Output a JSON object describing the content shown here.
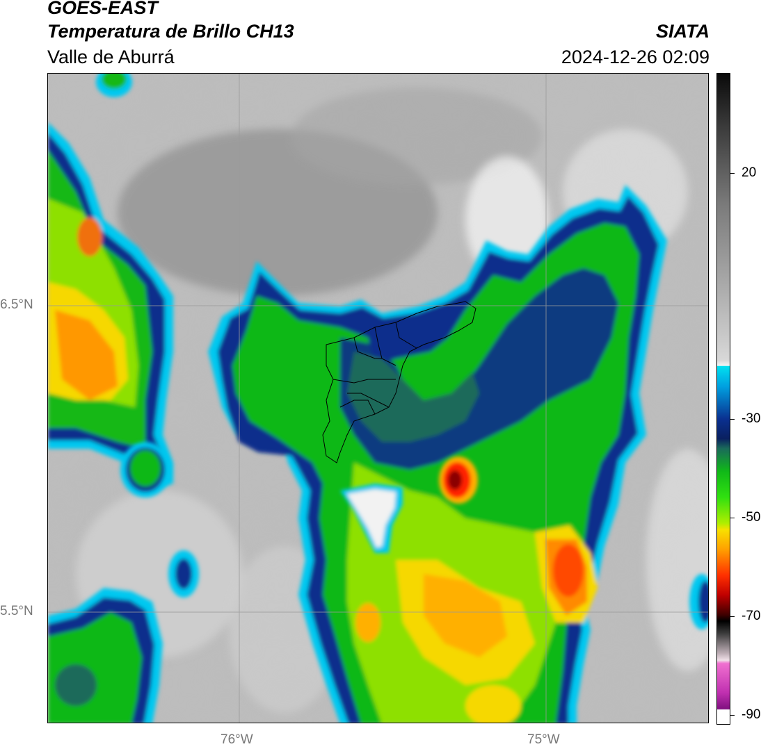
{
  "header": {
    "satellite": "GOES-EAST",
    "product": "Temperatura de Brillo CH13",
    "region": "Valle de Aburrá",
    "organization": "SIATA",
    "datetime": "2024-12-26 02:09"
  },
  "axes": {
    "lat_labels": [
      "6.5°N",
      "5.5°N"
    ],
    "lon_labels": [
      "76°W",
      "75°W"
    ],
    "gridlines": true
  },
  "colorbar": {
    "tick_labels": [
      "20",
      "-30",
      "-50",
      "-70",
      "-90"
    ],
    "colors": {
      "warm_gray": "#8a8a8a",
      "white": "#f2f2f2",
      "cyan": "#00d0ff",
      "blue": "#0a3090",
      "green": "#10c010",
      "yellow": "#ffe000",
      "red": "#e00000",
      "black": "#000000",
      "magenta": "#c020c0"
    }
  }
}
